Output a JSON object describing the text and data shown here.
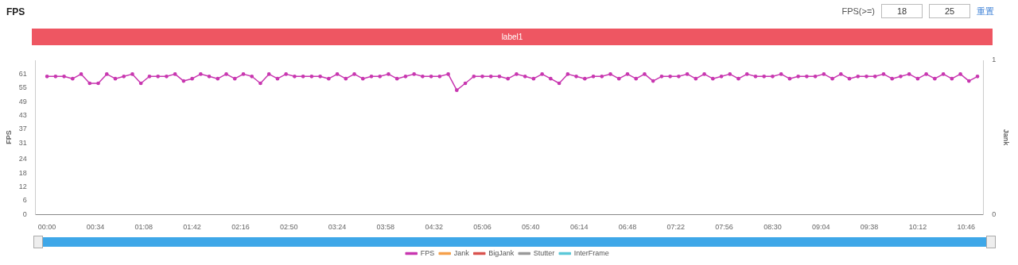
{
  "chart_data": {
    "type": "line",
    "title": "FPS",
    "ylabel": "FPS",
    "y2label": "Jank",
    "annotations": [
      "FPS(>=)",
      "18",
      "25",
      "重置",
      "label1"
    ],
    "xlim": [
      -8,
      658
    ],
    "xticks": [
      {
        "value": 0,
        "label": "00:00"
      },
      {
        "value": 34,
        "label": "00:34"
      },
      {
        "value": 68,
        "label": "01:08"
      },
      {
        "value": 102,
        "label": "01:42"
      },
      {
        "value": 136,
        "label": "02:16"
      },
      {
        "value": 170,
        "label": "02:50"
      },
      {
        "value": 204,
        "label": "03:24"
      },
      {
        "value": 238,
        "label": "03:58"
      },
      {
        "value": 272,
        "label": "04:32"
      },
      {
        "value": 306,
        "label": "05:06"
      },
      {
        "value": 340,
        "label": "05:40"
      },
      {
        "value": 374,
        "label": "06:14"
      },
      {
        "value": 408,
        "label": "06:48"
      },
      {
        "value": 442,
        "label": "07:22"
      },
      {
        "value": 476,
        "label": "07:56"
      },
      {
        "value": 510,
        "label": "08:30"
      },
      {
        "value": 544,
        "label": "09:04"
      },
      {
        "value": 578,
        "label": "09:38"
      },
      {
        "value": 612,
        "label": "10:12"
      },
      {
        "value": 646,
        "label": "10:46"
      }
    ],
    "ylim": [
      0,
      67
    ],
    "yticks": [
      0,
      6,
      12,
      18,
      24,
      31,
      37,
      43,
      49,
      55,
      61
    ],
    "y2lim": [
      0,
      1
    ],
    "y2ticks": [
      0,
      1
    ],
    "grid": false,
    "legend": "bottom",
    "marker": "circle",
    "line_style": "solid",
    "series": [
      {
        "name": "FPS",
        "color": "#c837b0",
        "x": [
          0,
          6,
          12,
          18,
          24,
          30,
          36,
          42,
          48,
          54,
          60,
          66,
          72,
          78,
          84,
          90,
          96,
          102,
          108,
          114,
          120,
          126,
          132,
          138,
          144,
          150,
          156,
          162,
          168,
          174,
          180,
          186,
          192,
          198,
          204,
          210,
          216,
          222,
          228,
          234,
          240,
          246,
          252,
          258,
          264,
          270,
          276,
          282,
          288,
          294,
          300,
          306,
          312,
          318,
          324,
          330,
          336,
          342,
          348,
          354,
          360,
          366,
          372,
          378,
          384,
          390,
          396,
          402,
          408,
          414,
          420,
          426,
          432,
          438,
          444,
          450,
          456,
          462,
          468,
          474,
          480,
          486,
          492,
          498,
          504,
          510,
          516,
          522,
          528,
          534,
          540,
          546,
          552,
          558,
          564,
          570,
          576,
          582,
          588,
          594,
          600,
          606,
          612,
          618,
          624,
          630,
          636,
          642,
          648,
          654
        ],
        "values": [
          60,
          60,
          60,
          59,
          61,
          57,
          57,
          61,
          59,
          60,
          61,
          57,
          60,
          60,
          60,
          61,
          58,
          59,
          61,
          60,
          59,
          61,
          59,
          61,
          60,
          57,
          61,
          59,
          61,
          60,
          60,
          60,
          60,
          59,
          61,
          59,
          61,
          59,
          60,
          60,
          61,
          59,
          60,
          61,
          60,
          60,
          60,
          61,
          54,
          57,
          60,
          60,
          60,
          60,
          59,
          61,
          60,
          59,
          61,
          59,
          57,
          61,
          60,
          59,
          60,
          60,
          61,
          59,
          61,
          59,
          61,
          58,
          60,
          60,
          60,
          61,
          59,
          61,
          59,
          60,
          61,
          59,
          61,
          60,
          60,
          60,
          61,
          59,
          60,
          60,
          60,
          61,
          59,
          61,
          59,
          60,
          60,
          60,
          61,
          59,
          60,
          61,
          59,
          61,
          59,
          61,
          59,
          61,
          58,
          60
        ]
      },
      {
        "name": "Jank",
        "color": "#f5a04a"
      },
      {
        "name": "BigJank",
        "color": "#d9534f"
      },
      {
        "name": "Stutter",
        "color": "#999999"
      },
      {
        "name": "InterFrame",
        "color": "#5bc8d8"
      }
    ]
  }
}
